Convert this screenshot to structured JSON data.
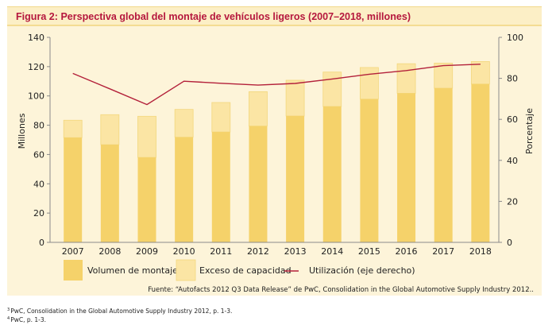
{
  "title": "Figura 2: Perspectiva global del montaje de vehículos ligeros (2007–2018, millones)",
  "colors": {
    "volume": "#f5d26a",
    "excess": "#fbe5a4",
    "utilization": "#b3203a",
    "background": "#fdf4d9",
    "title_band": "#fcefc6",
    "title_text": "#b5173d"
  },
  "chart_data": {
    "type": "bar",
    "stacked": true,
    "categories": [
      "2007",
      "2008",
      "2009",
      "2010",
      "2011",
      "2012",
      "2013",
      "2014",
      "2015",
      "2016",
      "2017",
      "2018"
    ],
    "series": [
      {
        "name": "Volumen de montaje",
        "axis": "left",
        "values": [
          71.5,
          66.7,
          58.0,
          71.8,
          75.4,
          79.4,
          86.3,
          92.8,
          97.8,
          101.8,
          105.3,
          108.1
        ]
      },
      {
        "name": "Exceso de capacidad",
        "axis": "left",
        "values": [
          11.9,
          20.5,
          28.1,
          19.0,
          20.1,
          23.5,
          24.4,
          23.5,
          21.6,
          20.2,
          17.1,
          15.4
        ]
      },
      {
        "name": "Utilización (eje derecho)",
        "axis": "right",
        "type": "line",
        "values": [
          82.4,
          74.9,
          67.2,
          78.6,
          77.6,
          76.7,
          77.5,
          79.7,
          82.0,
          83.8,
          86.2,
          86.9
        ]
      }
    ],
    "ylabel": "Millones",
    "y2label": "Porcentaje",
    "ylim": [
      0,
      140
    ],
    "y2lim": [
      0,
      100
    ],
    "yticks": [
      "140",
      "120",
      "100",
      "80",
      "60",
      "40",
      "20",
      "0"
    ],
    "y2ticks": [
      "100",
      "80",
      "60",
      "40",
      "20",
      "0"
    ],
    "grid": false,
    "legend": "bottom"
  },
  "source": "Fuente: “Autofacts 2012 Q3 Data Release” de PwC, Consolidation in the Global Automotive Supply Industry 2012..",
  "footnotes": [
    {
      "mark": "3",
      "text": "PwC, Consolidation in the Global Automotive Supply Industry 2012, p. 1-3."
    },
    {
      "mark": "4",
      "text": "PwC, p. 1-3."
    }
  ]
}
